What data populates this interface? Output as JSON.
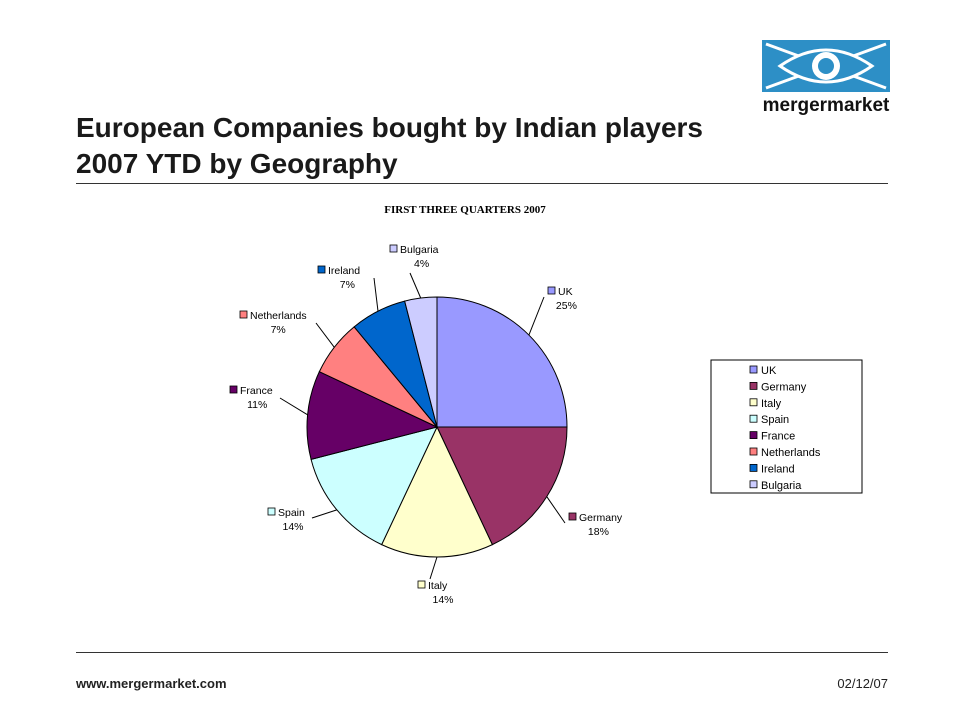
{
  "slide": {
    "title_line1": "European Companies bought by Indian players",
    "title_line2": "2007 YTD by Geography"
  },
  "logo": {
    "text": "mergermarket"
  },
  "footer": {
    "url": "www.mergermarket.com",
    "date": "02/12/07"
  },
  "colors": {
    "logo_blue": "#2d8fc6"
  },
  "chart_data": {
    "type": "pie",
    "title": "FIRST THREE QUARTERS 2007",
    "slices": [
      {
        "label": "UK",
        "value": 25,
        "pct": "25%",
        "color": "#9999ff"
      },
      {
        "label": "Germany",
        "value": 18,
        "pct": "18%",
        "color": "#993366"
      },
      {
        "label": "Italy",
        "value": 14,
        "pct": "14%",
        "color": "#ffffcc"
      },
      {
        "label": "Spain",
        "value": 14,
        "pct": "14%",
        "color": "#ccffff"
      },
      {
        "label": "France",
        "value": 11,
        "pct": "11%",
        "color": "#660066"
      },
      {
        "label": "Netherlands",
        "value": 7,
        "pct": "7%",
        "color": "#ff8080"
      },
      {
        "label": "Ireland",
        "value": 7,
        "pct": "7%",
        "color": "#0066cc"
      },
      {
        "label": "Bulgaria",
        "value": 4,
        "pct": "4%",
        "color": "#ccccff"
      }
    ],
    "start_angle": "12 o'clock",
    "direction": "clockwise",
    "legend": {
      "placement": "right",
      "entries": [
        "UK",
        "Germany",
        "Italy",
        "Spain",
        "France",
        "Netherlands",
        "Ireland",
        "Bulgaria"
      ]
    }
  }
}
